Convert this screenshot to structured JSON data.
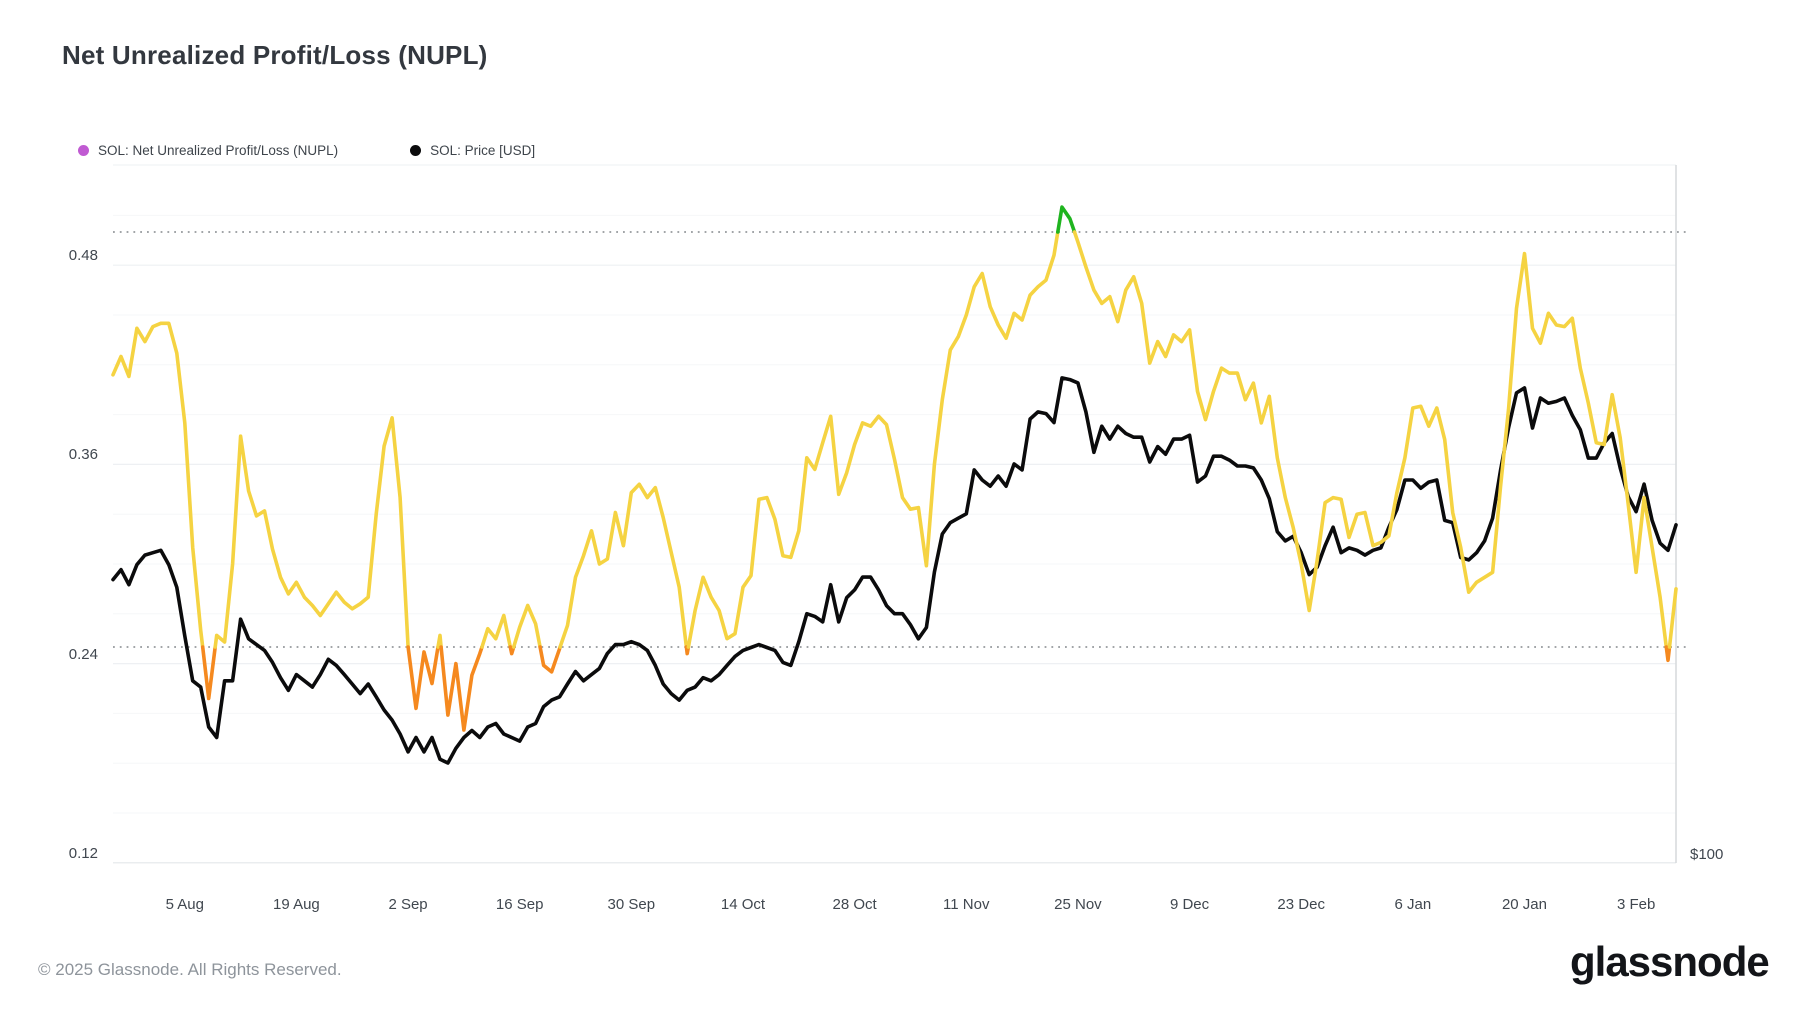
{
  "header": {
    "title": "Net Unrealized Profit/Loss (NUPL)"
  },
  "legend": [
    {
      "label": "SOL: Net Unrealized Profit/Loss (NUPL)",
      "color": "#c05ad2"
    },
    {
      "label": "SOL: Price [USD]",
      "color": "#0b0b0c"
    }
  ],
  "axes": {
    "y_left_ticks": [
      "0.48",
      "0.36",
      "0.24",
      "0.12"
    ],
    "y_left_values": [
      0.48,
      0.36,
      0.24,
      0.12
    ],
    "y_right_label": "$100",
    "x_ticks": [
      "5 Aug",
      "19 Aug",
      "2 Sep",
      "16 Sep",
      "30 Sep",
      "14 Oct",
      "28 Oct",
      "11 Nov",
      "25 Nov",
      "9 Dec",
      "23 Dec",
      "6 Jan",
      "20 Jan",
      "3 Feb"
    ]
  },
  "footer": {
    "copyright": "© 2025 Glassnode. All Rights Reserved.",
    "brand": "glassnode"
  },
  "chart_data": {
    "type": "line",
    "title": "Net Unrealized Profit/Loss (NUPL)",
    "start_date": "2024-07-27",
    "interval_days": 1,
    "x_tick_day_offsets": [
      9,
      23,
      37,
      51,
      65,
      79,
      93,
      107,
      121,
      135,
      149,
      163,
      177,
      191
    ],
    "nupl_axis": {
      "range_shown": [
        0.12,
        0.54
      ],
      "gridline_values": [
        0.12,
        0.24,
        0.36,
        0.48
      ],
      "dotted_thresholds": [
        0.25,
        0.5
      ]
    },
    "price_axis": {
      "scale": "log",
      "anchor_label": "$100",
      "anchor_value": 100
    },
    "zone_colors": {
      "below_0.25": "#f5891f",
      "between": "#f5d342",
      "above_0.5": "#1fb41f"
    },
    "series": [
      {
        "name": "SOL: Net Unrealized Profit/Loss (NUPL)",
        "axis": "nupl",
        "values": [
          0.414,
          0.425,
          0.413,
          0.442,
          0.434,
          0.443,
          0.445,
          0.445,
          0.427,
          0.385,
          0.31,
          0.26,
          0.219,
          0.257,
          0.253,
          0.3,
          0.377,
          0.344,
          0.329,
          0.332,
          0.309,
          0.292,
          0.282,
          0.289,
          0.28,
          0.275,
          0.269,
          0.276,
          0.283,
          0.277,
          0.273,
          0.276,
          0.28,
          0.33,
          0.371,
          0.388,
          0.34,
          0.25,
          0.213,
          0.247,
          0.228,
          0.257,
          0.209,
          0.24,
          0.2,
          0.233,
          0.246,
          0.261,
          0.255,
          0.269,
          0.246,
          0.262,
          0.275,
          0.264,
          0.239,
          0.235,
          0.249,
          0.263,
          0.292,
          0.305,
          0.32,
          0.3,
          0.303,
          0.331,
          0.311,
          0.343,
          0.348,
          0.34,
          0.346,
          0.328,
          0.307,
          0.286,
          0.246,
          0.272,
          0.292,
          0.28,
          0.272,
          0.255,
          0.258,
          0.286,
          0.293,
          0.339,
          0.34,
          0.327,
          0.305,
          0.304,
          0.32,
          0.364,
          0.357,
          0.373,
          0.389,
          0.342,
          0.355,
          0.372,
          0.385,
          0.383,
          0.389,
          0.384,
          0.363,
          0.34,
          0.333,
          0.334,
          0.299,
          0.36,
          0.399,
          0.429,
          0.437,
          0.45,
          0.467,
          0.475,
          0.455,
          0.444,
          0.436,
          0.451,
          0.447,
          0.462,
          0.467,
          0.471,
          0.486,
          0.515,
          0.508,
          0.494,
          0.479,
          0.465,
          0.457,
          0.461,
          0.446,
          0.465,
          0.473,
          0.457,
          0.421,
          0.434,
          0.425,
          0.438,
          0.434,
          0.441,
          0.404,
          0.387,
          0.404,
          0.418,
          0.415,
          0.415,
          0.399,
          0.409,
          0.385,
          0.401,
          0.364,
          0.34,
          0.322,
          0.3,
          0.272,
          0.302,
          0.337,
          0.34,
          0.339,
          0.316,
          0.33,
          0.331,
          0.311,
          0.313,
          0.317,
          0.343,
          0.364,
          0.394,
          0.395,
          0.383,
          0.394,
          0.375,
          0.331,
          0.31,
          0.283,
          0.289,
          0.292,
          0.295,
          0.347,
          0.393,
          0.454,
          0.487,
          0.442,
          0.433,
          0.451,
          0.444,
          0.443,
          0.448,
          0.418,
          0.397,
          0.373,
          0.372,
          0.402,
          0.376,
          0.336,
          0.295,
          0.34,
          0.31,
          0.28,
          0.242,
          0.285
        ]
      },
      {
        "name": "SOL: Price [USD]",
        "axis": "price",
        "values": [
          184,
          188,
          182,
          190,
          194,
          195,
          196,
          190,
          181,
          163,
          148,
          146,
          134,
          131,
          148,
          148,
          169,
          162,
          160,
          158,
          154,
          149,
          145,
          150,
          148,
          146,
          150,
          155,
          153,
          150,
          147,
          144,
          147,
          143,
          139,
          136,
          132,
          127,
          131,
          127,
          131,
          125,
          124,
          128,
          131,
          133,
          131,
          134,
          135,
          132,
          131,
          130,
          134,
          135,
          140,
          142,
          143,
          147,
          151,
          148,
          150,
          152,
          157,
          160,
          160,
          161,
          160,
          158,
          153,
          147,
          144,
          142,
          145,
          146,
          149,
          148,
          150,
          153,
          156,
          158,
          159,
          160,
          159,
          158,
          154,
          153,
          161,
          171,
          170,
          168,
          182,
          168,
          177,
          180,
          185,
          185,
          180,
          174,
          171,
          171,
          167,
          162,
          166,
          187,
          203,
          208,
          210,
          212,
          233,
          228,
          225,
          230,
          225,
          236,
          233,
          260,
          264,
          263,
          258,
          284,
          283,
          281,
          264,
          242,
          256,
          249,
          256,
          252,
          250,
          250,
          237,
          245,
          241,
          249,
          249,
          251,
          227,
          230,
          240,
          240,
          238,
          235,
          235,
          234,
          228,
          219,
          204,
          200,
          202,
          195,
          186,
          189,
          198,
          206,
          195,
          197,
          196,
          194,
          196,
          197,
          206,
          214,
          228,
          228,
          224,
          227,
          228,
          209,
          208,
          193,
          192,
          195,
          200,
          210,
          233,
          255,
          275,
          278,
          255,
          272,
          269,
          270,
          272,
          262,
          254,
          239,
          239,
          247,
          252,
          234,
          220,
          213,
          226,
          209,
          199,
          196,
          207
        ]
      }
    ]
  }
}
